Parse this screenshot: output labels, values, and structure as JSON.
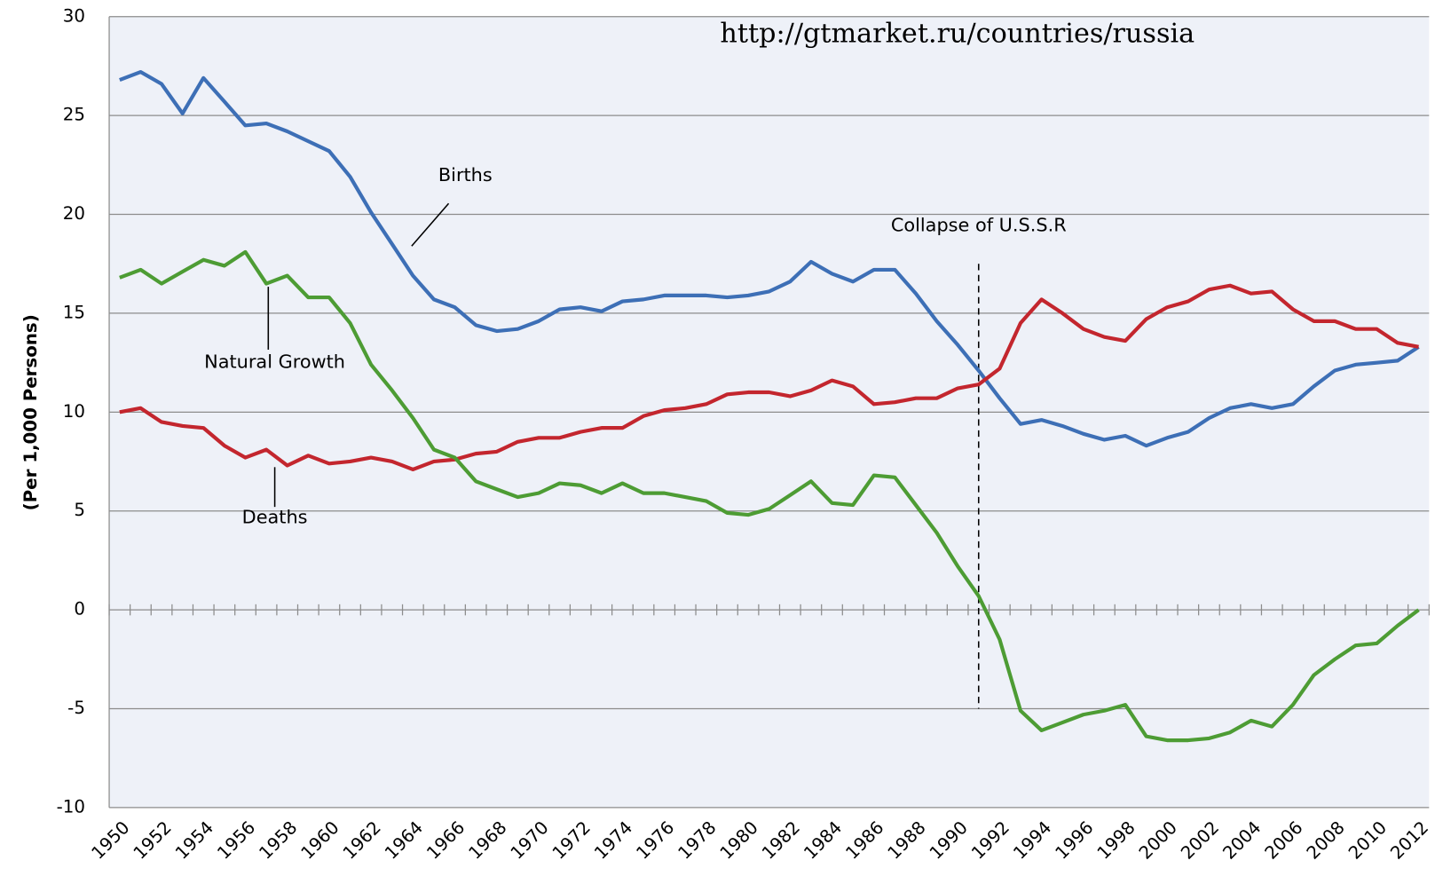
{
  "chart_data": {
    "type": "line",
    "source": "http://gtmarket.ru/countries/russia",
    "y_label": "(Per 1,000 Persons)",
    "annotations": [
      {
        "text": "Collapse of U.S.S.R",
        "x": 1991
      }
    ],
    "categories": [
      "1950",
      null,
      "1952",
      null,
      "1954",
      null,
      "1956",
      null,
      "1958",
      null,
      "1960",
      null,
      "1962",
      null,
      "1964",
      null,
      "1966",
      null,
      "1968",
      null,
      "1970",
      null,
      "1972",
      null,
      "1974",
      null,
      "1976",
      null,
      "1978",
      null,
      "1980",
      null,
      "1982",
      null,
      "1984",
      null,
      "1986",
      null,
      "1988",
      null,
      "1990",
      null,
      "1992",
      null,
      "1994",
      null,
      "1996",
      null,
      "1998",
      null,
      "2000",
      null,
      "2002",
      null,
      "2004",
      null,
      "2006",
      null,
      "2008",
      null,
      "2010",
      null,
      "2012"
    ],
    "series": [
      {
        "name": "Births",
        "color": "#3d6fb6",
        "values": [
          26.8,
          27.2,
          26.6,
          25.1,
          26.9,
          25.7,
          24.5,
          24.6,
          24.2,
          23.7,
          23.2,
          21.9,
          20.1,
          18.5,
          16.9,
          15.7,
          15.3,
          14.4,
          14.1,
          14.2,
          14.6,
          15.2,
          15.3,
          15.1,
          15.6,
          15.7,
          15.9,
          15.9,
          15.9,
          15.8,
          15.9,
          16.1,
          16.6,
          17.6,
          17.0,
          16.6,
          17.2,
          17.2,
          16.0,
          14.6,
          13.4,
          12.1,
          10.7,
          9.4,
          9.6,
          9.3,
          8.9,
          8.6,
          8.8,
          8.3,
          8.7,
          9.0,
          9.7,
          10.2,
          10.4,
          10.2,
          10.4,
          11.3,
          12.1,
          12.4,
          12.5,
          12.6,
          13.3
        ]
      },
      {
        "name": "Deaths",
        "color": "#c3262e",
        "values": [
          10.0,
          10.2,
          9.5,
          9.3,
          9.2,
          8.3,
          7.7,
          8.1,
          7.3,
          7.8,
          7.4,
          7.5,
          7.7,
          7.5,
          7.1,
          7.5,
          7.6,
          7.9,
          8.0,
          8.5,
          8.7,
          8.7,
          9.0,
          9.2,
          9.2,
          9.8,
          10.1,
          10.2,
          10.4,
          10.9,
          11.0,
          11.0,
          10.8,
          11.1,
          11.6,
          11.3,
          10.4,
          10.5,
          10.7,
          10.7,
          11.2,
          11.4,
          12.2,
          14.5,
          15.7,
          15.0,
          14.2,
          13.8,
          13.6,
          14.7,
          15.3,
          15.6,
          16.2,
          16.4,
          16.0,
          16.1,
          15.2,
          14.6,
          14.6,
          14.2,
          14.2,
          13.5,
          13.3
        ]
      },
      {
        "name": "Natural Growth",
        "color": "#4d9c34",
        "values": [
          16.8,
          17.2,
          16.5,
          17.1,
          17.7,
          17.4,
          18.1,
          16.5,
          16.9,
          15.8,
          15.8,
          14.5,
          12.4,
          11.1,
          9.7,
          8.1,
          7.7,
          6.5,
          6.1,
          5.7,
          5.9,
          6.4,
          6.3,
          5.9,
          6.4,
          5.9,
          5.9,
          5.7,
          5.5,
          4.9,
          4.8,
          5.1,
          5.8,
          6.5,
          5.4,
          5.3,
          6.8,
          6.7,
          5.3,
          3.9,
          2.2,
          0.7,
          -1.5,
          -5.1,
          -6.1,
          -5.7,
          -5.3,
          -5.1,
          -4.8,
          -6.4,
          -6.6,
          -6.6,
          -6.5,
          -6.2,
          -5.6,
          -5.9,
          -4.8,
          -3.3,
          -2.5,
          -1.8,
          -1.7,
          -0.8,
          0.0
        ]
      }
    ],
    "ylim": [
      -10,
      30
    ],
    "yticks": [
      -10,
      -5,
      0,
      5,
      10,
      15,
      20,
      25,
      30
    ],
    "grid": true
  }
}
